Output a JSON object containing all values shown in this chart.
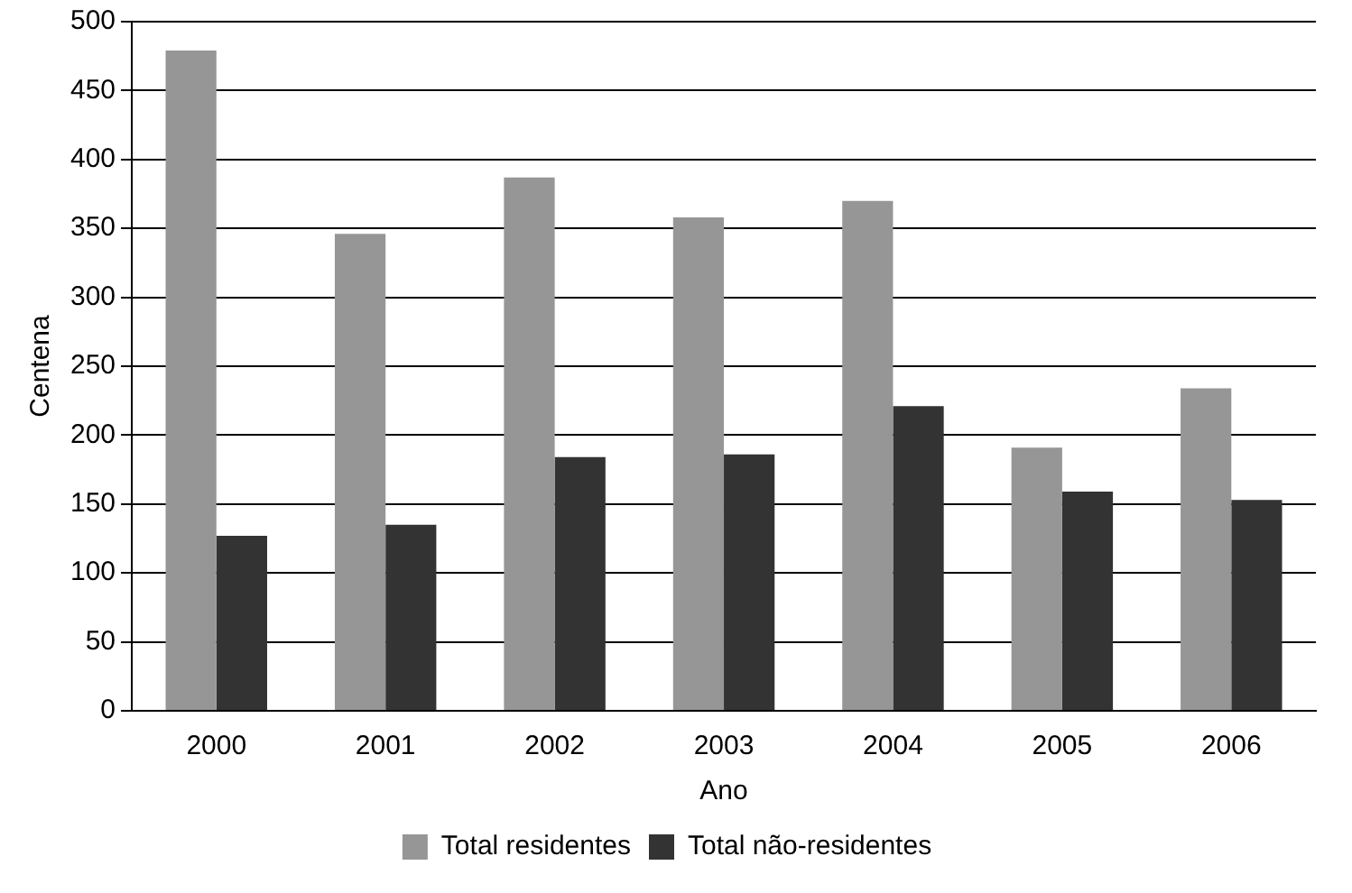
{
  "chart_data": {
    "type": "bar",
    "xlabel": "Ano",
    "ylabel": "Centena",
    "categories": [
      "2000",
      "2001",
      "2002",
      "2003",
      "2004",
      "2005",
      "2006"
    ],
    "series": [
      {
        "name": "Total residentes",
        "color": "#969696",
        "values": [
          479,
          346,
          387,
          358,
          370,
          191,
          234
        ]
      },
      {
        "name": "Total não-residentes",
        "color": "#333333",
        "values": [
          127,
          135,
          184,
          186,
          221,
          159,
          153
        ]
      }
    ],
    "ylim": [
      0,
      500
    ],
    "yticks": [
      0,
      50,
      100,
      150,
      200,
      250,
      300,
      350,
      400,
      450,
      500
    ],
    "grid": "y",
    "legend": "bottom"
  }
}
